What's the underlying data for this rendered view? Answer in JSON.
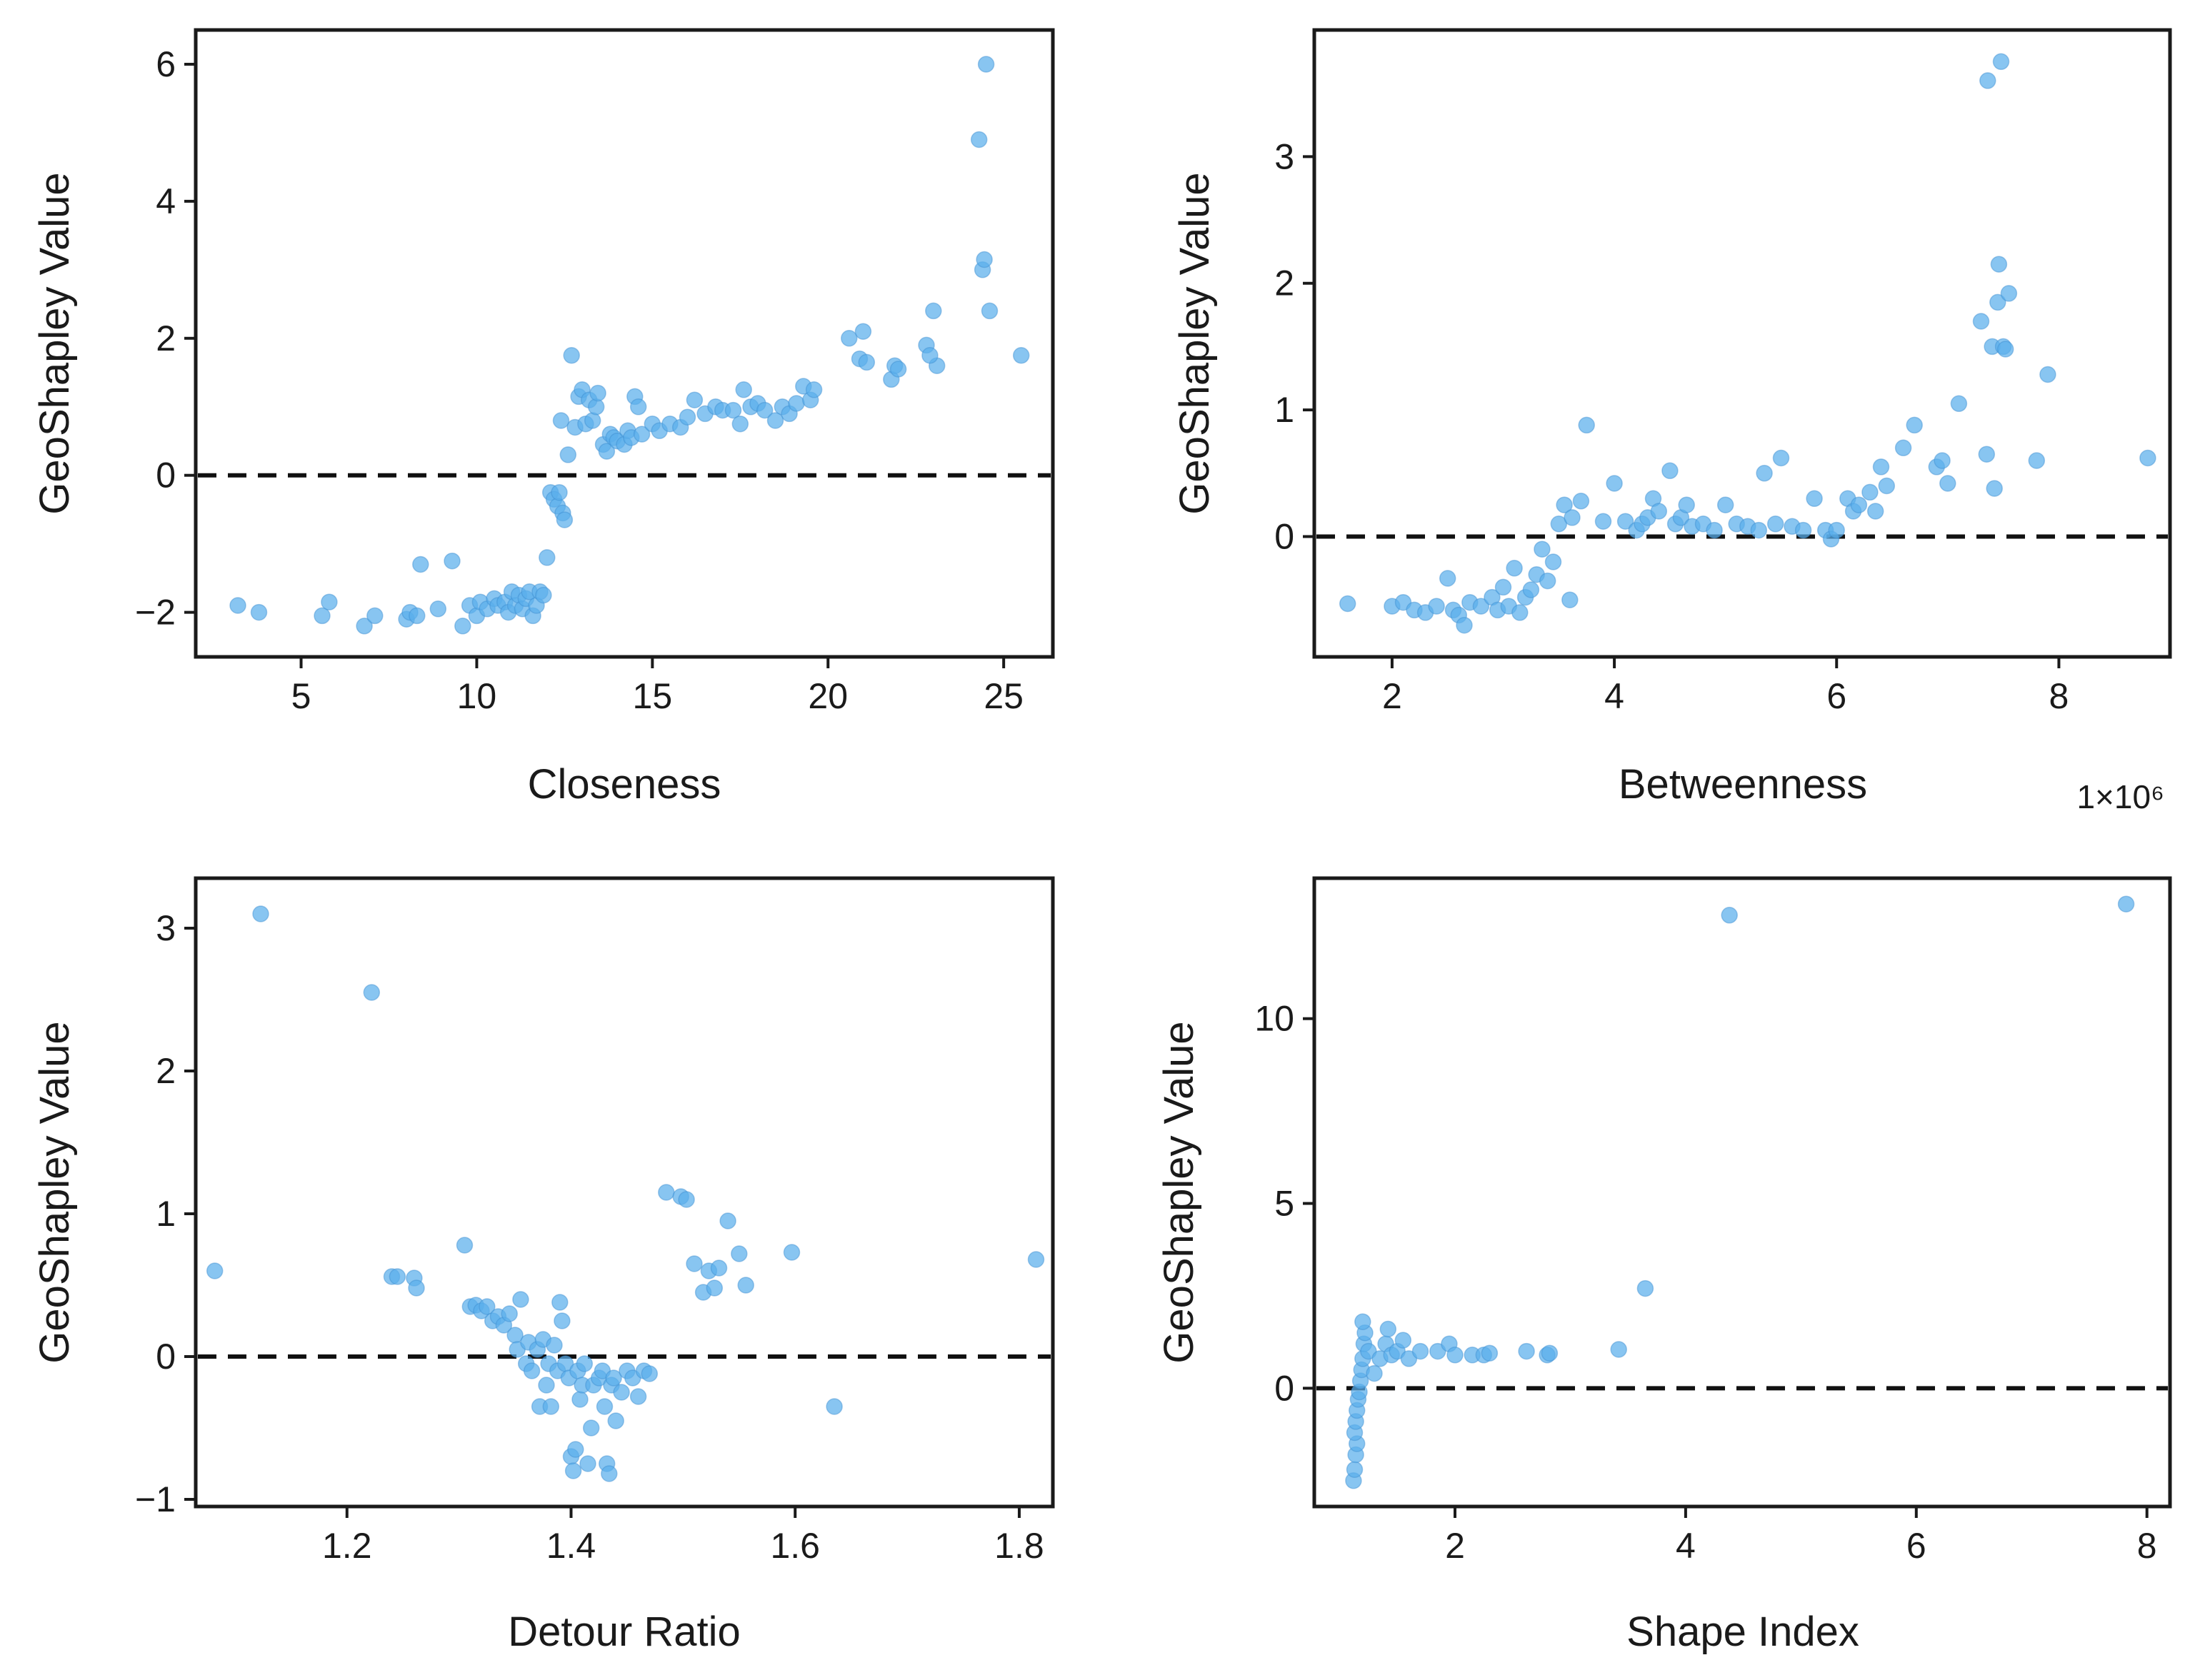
{
  "chart_data": [
    {
      "type": "scatter",
      "panel": "top-left",
      "xlabel": "Closeness",
      "ylabel": "GeoShapley Value",
      "xlim": [
        2.0,
        26.4
      ],
      "ylim": [
        -2.65,
        6.5
      ],
      "xticks": [
        5,
        10,
        15,
        20,
        25
      ],
      "yticks": [
        -2,
        0,
        2,
        4,
        6
      ],
      "ytick_labels": [
        "−2",
        "0",
        "2",
        "4",
        "6"
      ],
      "xtick_labels": [
        "5",
        "10",
        "15",
        "20",
        "25"
      ],
      "reference_line_y": 0,
      "points": [
        [
          3.2,
          -1.9
        ],
        [
          3.8,
          -2.0
        ],
        [
          5.6,
          -2.05
        ],
        [
          5.8,
          -1.85
        ],
        [
          6.8,
          -2.2
        ],
        [
          7.1,
          -2.05
        ],
        [
          8.0,
          -2.1
        ],
        [
          8.1,
          -2.0
        ],
        [
          8.3,
          -2.05
        ],
        [
          8.4,
          -1.3
        ],
        [
          8.9,
          -1.95
        ],
        [
          9.3,
          -1.25
        ],
        [
          9.6,
          -2.2
        ],
        [
          9.8,
          -1.9
        ],
        [
          10.0,
          -2.05
        ],
        [
          10.1,
          -1.85
        ],
        [
          10.3,
          -1.95
        ],
        [
          10.5,
          -1.8
        ],
        [
          10.6,
          -1.9
        ],
        [
          10.8,
          -1.85
        ],
        [
          10.9,
          -2.0
        ],
        [
          11.0,
          -1.7
        ],
        [
          11.1,
          -1.9
        ],
        [
          11.2,
          -1.75
        ],
        [
          11.3,
          -1.95
        ],
        [
          11.4,
          -1.8
        ],
        [
          11.5,
          -1.7
        ],
        [
          11.6,
          -2.05
        ],
        [
          11.7,
          -1.9
        ],
        [
          11.8,
          -1.7
        ],
        [
          11.9,
          -1.75
        ],
        [
          12.0,
          -1.2
        ],
        [
          12.1,
          -0.25
        ],
        [
          12.2,
          -0.35
        ],
        [
          12.3,
          -0.45
        ],
        [
          12.35,
          -0.25
        ],
        [
          12.4,
          0.8
        ],
        [
          12.45,
          -0.55
        ],
        [
          12.5,
          -0.65
        ],
        [
          12.6,
          0.3
        ],
        [
          12.7,
          1.75
        ],
        [
          12.8,
          0.7
        ],
        [
          12.9,
          1.15
        ],
        [
          13.0,
          1.25
        ],
        [
          13.1,
          0.75
        ],
        [
          13.2,
          1.1
        ],
        [
          13.3,
          0.8
        ],
        [
          13.4,
          1.0
        ],
        [
          13.45,
          1.2
        ],
        [
          13.6,
          0.45
        ],
        [
          13.7,
          0.35
        ],
        [
          13.8,
          0.6
        ],
        [
          13.9,
          0.55
        ],
        [
          14.0,
          0.5
        ],
        [
          14.2,
          0.45
        ],
        [
          14.3,
          0.65
        ],
        [
          14.4,
          0.55
        ],
        [
          14.5,
          1.15
        ],
        [
          14.6,
          1.0
        ],
        [
          14.7,
          0.6
        ],
        [
          15.0,
          0.75
        ],
        [
          15.2,
          0.65
        ],
        [
          15.5,
          0.75
        ],
        [
          15.8,
          0.7
        ],
        [
          16.0,
          0.85
        ],
        [
          16.2,
          1.1
        ],
        [
          16.5,
          0.9
        ],
        [
          16.8,
          1.0
        ],
        [
          17.0,
          0.95
        ],
        [
          17.3,
          0.95
        ],
        [
          17.5,
          0.75
        ],
        [
          17.6,
          1.25
        ],
        [
          17.8,
          1.0
        ],
        [
          18.0,
          1.05
        ],
        [
          18.2,
          0.95
        ],
        [
          18.5,
          0.8
        ],
        [
          18.7,
          1.0
        ],
        [
          18.9,
          0.9
        ],
        [
          19.1,
          1.05
        ],
        [
          19.3,
          1.3
        ],
        [
          19.5,
          1.1
        ],
        [
          19.6,
          1.25
        ],
        [
          20.6,
          2.0
        ],
        [
          20.9,
          1.7
        ],
        [
          21.0,
          2.1
        ],
        [
          21.1,
          1.65
        ],
        [
          21.8,
          1.4
        ],
        [
          21.9,
          1.6
        ],
        [
          22.0,
          1.55
        ],
        [
          22.8,
          1.9
        ],
        [
          23.0,
          2.4
        ],
        [
          23.1,
          1.6
        ],
        [
          22.9,
          1.75
        ],
        [
          24.3,
          4.9
        ],
        [
          24.4,
          3.0
        ],
        [
          24.45,
          3.15
        ],
        [
          24.5,
          6.0
        ],
        [
          24.6,
          2.4
        ],
        [
          25.5,
          1.75
        ]
      ]
    },
    {
      "type": "scatter",
      "panel": "top-right",
      "xlabel": "Betweenness",
      "ylabel": "GeoShapley Value",
      "x_scale_label": "1×10⁶",
      "xlim": [
        1.3,
        9.0
      ],
      "ylim": [
        -0.95,
        4.0
      ],
      "xticks": [
        2,
        4,
        6,
        8
      ],
      "yticks": [
        0,
        1,
        2,
        3
      ],
      "xtick_labels": [
        "2",
        "4",
        "6",
        "8"
      ],
      "ytick_labels": [
        "0",
        "1",
        "2",
        "3"
      ],
      "reference_line_y": 0,
      "points": [
        [
          1.6,
          -0.53
        ],
        [
          2.0,
          -0.55
        ],
        [
          2.1,
          -0.52
        ],
        [
          2.2,
          -0.58
        ],
        [
          2.3,
          -0.6
        ],
        [
          2.4,
          -0.55
        ],
        [
          2.5,
          -0.33
        ],
        [
          2.55,
          -0.58
        ],
        [
          2.6,
          -0.62
        ],
        [
          2.65,
          -0.7
        ],
        [
          2.7,
          -0.52
        ],
        [
          2.8,
          -0.55
        ],
        [
          2.9,
          -0.48
        ],
        [
          2.95,
          -0.58
        ],
        [
          3.0,
          -0.4
        ],
        [
          3.05,
          -0.55
        ],
        [
          3.1,
          -0.25
        ],
        [
          3.15,
          -0.6
        ],
        [
          3.2,
          -0.48
        ],
        [
          3.25,
          -0.42
        ],
        [
          3.3,
          -0.3
        ],
        [
          3.35,
          -0.1
        ],
        [
          3.4,
          -0.35
        ],
        [
          3.45,
          -0.2
        ],
        [
          3.5,
          0.1
        ],
        [
          3.55,
          0.25
        ],
        [
          3.6,
          -0.5
        ],
        [
          3.62,
          0.15
        ],
        [
          3.7,
          0.28
        ],
        [
          3.75,
          0.88
        ],
        [
          3.9,
          0.12
        ],
        [
          4.0,
          0.42
        ],
        [
          4.1,
          0.12
        ],
        [
          4.2,
          0.05
        ],
        [
          4.25,
          0.1
        ],
        [
          4.3,
          0.15
        ],
        [
          4.35,
          0.3
        ],
        [
          4.4,
          0.2
        ],
        [
          4.5,
          0.52
        ],
        [
          4.55,
          0.1
        ],
        [
          4.6,
          0.15
        ],
        [
          4.65,
          0.25
        ],
        [
          4.7,
          0.08
        ],
        [
          4.8,
          0.1
        ],
        [
          4.9,
          0.05
        ],
        [
          5.0,
          0.25
        ],
        [
          5.1,
          0.1
        ],
        [
          5.2,
          0.08
        ],
        [
          5.3,
          0.05
        ],
        [
          5.35,
          0.5
        ],
        [
          5.45,
          0.1
        ],
        [
          5.5,
          0.62
        ],
        [
          5.6,
          0.08
        ],
        [
          5.7,
          0.05
        ],
        [
          5.8,
          0.3
        ],
        [
          5.9,
          0.05
        ],
        [
          5.95,
          -0.02
        ],
        [
          6.0,
          0.05
        ],
        [
          6.1,
          0.3
        ],
        [
          6.15,
          0.2
        ],
        [
          6.2,
          0.25
        ],
        [
          6.3,
          0.35
        ],
        [
          6.35,
          0.2
        ],
        [
          6.4,
          0.55
        ],
        [
          6.45,
          0.4
        ],
        [
          6.6,
          0.7
        ],
        [
          6.7,
          0.88
        ],
        [
          6.9,
          0.55
        ],
        [
          6.95,
          0.6
        ],
        [
          7.0,
          0.42
        ],
        [
          7.1,
          1.05
        ],
        [
          7.3,
          1.7
        ],
        [
          7.35,
          0.65
        ],
        [
          7.36,
          3.6
        ],
        [
          7.4,
          1.5
        ],
        [
          7.42,
          0.38
        ],
        [
          7.45,
          1.85
        ],
        [
          7.46,
          2.15
        ],
        [
          7.48,
          3.75
        ],
        [
          7.5,
          1.5
        ],
        [
          7.52,
          1.48
        ],
        [
          7.55,
          1.92
        ],
        [
          7.8,
          0.6
        ],
        [
          7.9,
          1.28
        ],
        [
          8.8,
          0.62
        ]
      ]
    },
    {
      "type": "scatter",
      "panel": "bottom-left",
      "xlabel": "Detour Ratio",
      "ylabel": "GeoShapley Value",
      "xlim": [
        1.065,
        1.83
      ],
      "ylim": [
        -1.05,
        3.35
      ],
      "xticks": [
        1.2,
        1.4,
        1.6,
        1.8
      ],
      "yticks": [
        -1,
        0,
        1,
        2,
        3
      ],
      "xtick_labels": [
        "1.2",
        "1.4",
        "1.6",
        "1.8"
      ],
      "ytick_labels": [
        "−1",
        "0",
        "1",
        "2",
        "3"
      ],
      "reference_line_y": 0,
      "points": [
        [
          1.082,
          0.6
        ],
        [
          1.123,
          3.1
        ],
        [
          1.222,
          2.55
        ],
        [
          1.24,
          0.56
        ],
        [
          1.245,
          0.56
        ],
        [
          1.26,
          0.55
        ],
        [
          1.262,
          0.48
        ],
        [
          1.305,
          0.78
        ],
        [
          1.31,
          0.35
        ],
        [
          1.315,
          0.36
        ],
        [
          1.32,
          0.32
        ],
        [
          1.325,
          0.35
        ],
        [
          1.33,
          0.25
        ],
        [
          1.335,
          0.28
        ],
        [
          1.34,
          0.22
        ],
        [
          1.345,
          0.3
        ],
        [
          1.35,
          0.15
        ],
        [
          1.352,
          0.05
        ],
        [
          1.355,
          0.4
        ],
        [
          1.36,
          -0.05
        ],
        [
          1.362,
          0.1
        ],
        [
          1.365,
          -0.1
        ],
        [
          1.37,
          0.05
        ],
        [
          1.372,
          -0.35
        ],
        [
          1.375,
          0.12
        ],
        [
          1.378,
          -0.2
        ],
        [
          1.38,
          -0.05
        ],
        [
          1.382,
          -0.35
        ],
        [
          1.385,
          0.08
        ],
        [
          1.388,
          -0.1
        ],
        [
          1.39,
          0.38
        ],
        [
          1.392,
          0.25
        ],
        [
          1.395,
          -0.05
        ],
        [
          1.398,
          -0.15
        ],
        [
          1.4,
          -0.7
        ],
        [
          1.402,
          -0.8
        ],
        [
          1.404,
          -0.65
        ],
        [
          1.406,
          -0.1
        ],
        [
          1.408,
          -0.3
        ],
        [
          1.41,
          -0.2
        ],
        [
          1.412,
          -0.05
        ],
        [
          1.415,
          -0.75
        ],
        [
          1.418,
          -0.5
        ],
        [
          1.42,
          -0.2
        ],
        [
          1.425,
          -0.15
        ],
        [
          1.428,
          -0.1
        ],
        [
          1.43,
          -0.35
        ],
        [
          1.432,
          -0.75
        ],
        [
          1.434,
          -0.82
        ],
        [
          1.436,
          -0.2
        ],
        [
          1.438,
          -0.15
        ],
        [
          1.44,
          -0.45
        ],
        [
          1.445,
          -0.25
        ],
        [
          1.45,
          -0.1
        ],
        [
          1.455,
          -0.15
        ],
        [
          1.46,
          -0.28
        ],
        [
          1.465,
          -0.1
        ],
        [
          1.47,
          -0.12
        ],
        [
          1.485,
          1.15
        ],
        [
          1.498,
          1.12
        ],
        [
          1.503,
          1.1
        ],
        [
          1.51,
          0.65
        ],
        [
          1.518,
          0.45
        ],
        [
          1.523,
          0.6
        ],
        [
          1.528,
          0.48
        ],
        [
          1.532,
          0.62
        ],
        [
          1.54,
          0.95
        ],
        [
          1.55,
          0.72
        ],
        [
          1.556,
          0.5
        ],
        [
          1.597,
          0.73
        ],
        [
          1.635,
          -0.35
        ],
        [
          1.815,
          0.68
        ]
      ]
    },
    {
      "type": "scatter",
      "panel": "bottom-right",
      "xlabel": "Shape Index",
      "ylabel": "GeoShapley Value",
      "xlim": [
        0.78,
        8.2
      ],
      "ylim": [
        -3.2,
        13.8
      ],
      "xticks": [
        2,
        4,
        6,
        8
      ],
      "yticks": [
        0,
        5,
        10
      ],
      "xtick_labels": [
        "2",
        "4",
        "6",
        "8"
      ],
      "ytick_labels": [
        "0",
        "5",
        "10"
      ],
      "reference_line_y": 0,
      "points": [
        [
          1.12,
          -2.5
        ],
        [
          1.13,
          -2.2
        ],
        [
          1.14,
          -1.8
        ],
        [
          1.15,
          -1.5
        ],
        [
          1.13,
          -1.2
        ],
        [
          1.14,
          -0.9
        ],
        [
          1.15,
          -0.6
        ],
        [
          1.16,
          -0.3
        ],
        [
          1.17,
          -0.1
        ],
        [
          1.18,
          0.2
        ],
        [
          1.19,
          0.5
        ],
        [
          1.2,
          0.8
        ],
        [
          1.21,
          1.2
        ],
        [
          1.22,
          1.5
        ],
        [
          1.2,
          1.8
        ],
        [
          1.25,
          1.0
        ],
        [
          1.3,
          0.4
        ],
        [
          1.35,
          0.8
        ],
        [
          1.4,
          1.2
        ],
        [
          1.42,
          1.6
        ],
        [
          1.45,
          0.9
        ],
        [
          1.5,
          1.0
        ],
        [
          1.55,
          1.3
        ],
        [
          1.6,
          0.8
        ],
        [
          1.7,
          1.0
        ],
        [
          1.85,
          1.0
        ],
        [
          1.95,
          1.2
        ],
        [
          2.0,
          0.9
        ],
        [
          2.15,
          0.9
        ],
        [
          2.25,
          0.9
        ],
        [
          2.3,
          0.95
        ],
        [
          2.62,
          1.0
        ],
        [
          2.8,
          0.9
        ],
        [
          2.82,
          0.95
        ],
        [
          3.42,
          1.05
        ],
        [
          3.65,
          2.7
        ],
        [
          4.38,
          12.8
        ],
        [
          7.82,
          13.1
        ]
      ]
    }
  ],
  "style": {
    "point_color": "#5AAEEB",
    "point_edge": "#3D8FD1",
    "axis_color": "#1a1a1a"
  }
}
